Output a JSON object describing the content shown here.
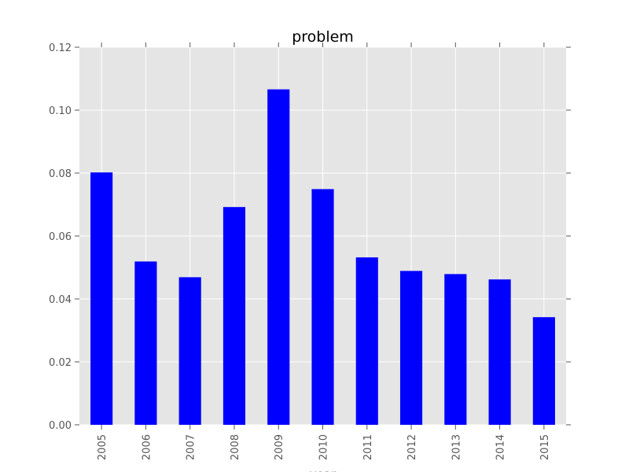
{
  "colors": {
    "plot_background": "#e5e5e5",
    "grid": "#ffffff",
    "bar": "#0000ff",
    "tick": "#555555",
    "title": "#000000"
  },
  "chart_data": {
    "type": "bar",
    "title": "problem",
    "xlabel": "year",
    "ylabel": "",
    "categories": [
      "2005",
      "2006",
      "2007",
      "2008",
      "2009",
      "2010",
      "2011",
      "2012",
      "2013",
      "2014",
      "2015"
    ],
    "values": [
      0.0802,
      0.0519,
      0.0469,
      0.0692,
      0.1066,
      0.0749,
      0.0532,
      0.0489,
      0.0479,
      0.0462,
      0.0342
    ],
    "ylim": [
      0,
      0.12
    ],
    "yticks": [
      "0.00",
      "0.02",
      "0.04",
      "0.06",
      "0.08",
      "0.10",
      "0.12"
    ],
    "grid": true,
    "legend": "none"
  }
}
